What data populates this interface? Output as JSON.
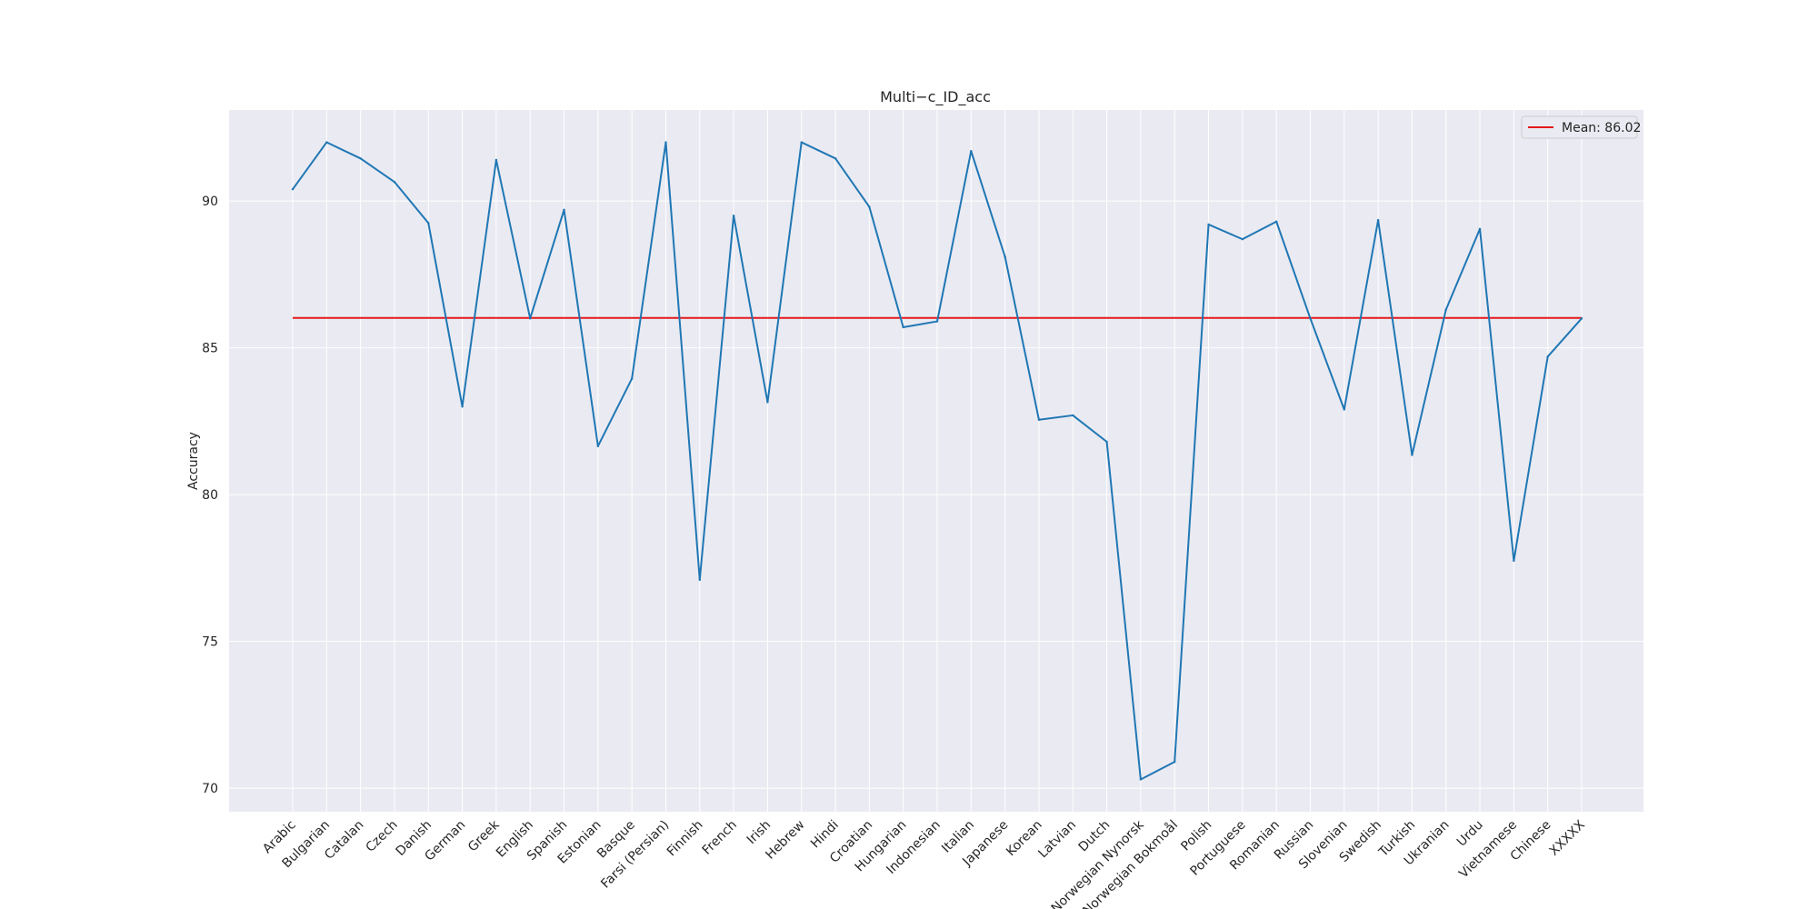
{
  "chart_data": {
    "type": "line",
    "title": "Multi−c_ID_acc",
    "xlabel": "",
    "ylabel": "Accuracy",
    "categories": [
      "Arabic",
      "Bulgarian",
      "Catalan",
      "Czech",
      "Danish",
      "German",
      "Greek",
      "English",
      "Spanish",
      "Estonian",
      "Basque",
      "Farsi (Persian)",
      "Finnish",
      "French",
      "Irish",
      "Hebrew",
      "Hindi",
      "Croatian",
      "Hungarian",
      "Indonesian",
      "Italian",
      "Japanese",
      "Korean",
      "Latvian",
      "Dutch",
      "Norwegian Nynorsk",
      "Norwegian Bokmoål",
      "Polish",
      "Portuguese",
      "Romanian",
      "Russian",
      "Slovenian",
      "Swedish",
      "Turkish",
      "Ukranian",
      "Urdu",
      "Vietnamese",
      "Chinese",
      "XXXXX"
    ],
    "series": [
      {
        "values": [
          90.4,
          92.0,
          91.45,
          90.65,
          89.25,
          83.0,
          91.4,
          86.0,
          89.7,
          81.65,
          83.95,
          92.0,
          77.1,
          89.5,
          83.15,
          92.0,
          91.45,
          89.8,
          85.7,
          85.9,
          91.7,
          88.1,
          82.55,
          82.7,
          81.8,
          70.3,
          70.9,
          89.2,
          88.7,
          89.3,
          86.0,
          82.9,
          89.35,
          81.35,
          86.3,
          89.05,
          77.75,
          84.7,
          86.0
        ],
        "color": "#1f77b4"
      }
    ],
    "reference_lines": [
      {
        "name": "Mean: 86.02",
        "value": 86.02,
        "color": "#e31a1c"
      }
    ],
    "yticks": [
      70,
      75,
      80,
      85,
      90
    ],
    "ylim": [
      69.2,
      93.1
    ],
    "grid": true,
    "legend": "top-right",
    "background": "#eaeaf2"
  }
}
